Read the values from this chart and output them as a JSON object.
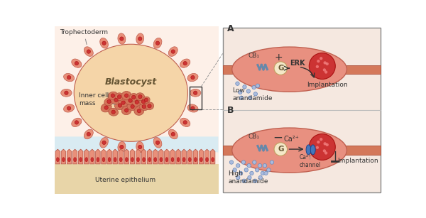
{
  "bg_color": "#ffffff",
  "left_bg": "#fdf0e8",
  "blastocyst_fill": "#f5d5a8",
  "tro_face": "#e8907a",
  "tro_edge": "#c06050",
  "icm_face": "#d4755a",
  "icm_edge": "#b05040",
  "ute_face": "#e8907a",
  "ute_edge": "#b05040",
  "sandy_fill": "#e8d5a8",
  "fluid_fill": "#d0eaf5",
  "right_bg": "#f5e8e0",
  "tube_fill": "#d4785a",
  "tube_edge": "#b05540",
  "vesicle_fill": "#e89080",
  "nucleus_col": "#cc3333",
  "g_fill": "#f5e8c8",
  "g_edge": "#c0a060",
  "ca_fill": "#4477bb",
  "ca_edge": "#224488",
  "dot_face": "#aabbdd",
  "dot_edge": "#6688bb",
  "arrow_col": "#333333",
  "label_col": "#333333",
  "receptor_col": "#6688aa",
  "cb1": "CB₁",
  "g_lbl": "G",
  "erk_lbl": "ERK",
  "plus_lbl": "+",
  "minus_lbl": "−",
  "ca2_lbl": "Ca²⁺",
  "low_ana": "Low\nanandamide",
  "high_ana": "High\nanandamide",
  "implant_lbl": "Implantation",
  "ca_ch_lbl": "Ca²⁺\nchannel",
  "blasto_lbl": "Blastocyst",
  "tropho_lbl": "Trophectoderm",
  "icm_lbl": "Inner cell\nmass",
  "ute_lbl": "Uterine epithelium",
  "panel_A": "A",
  "panel_B": "B"
}
